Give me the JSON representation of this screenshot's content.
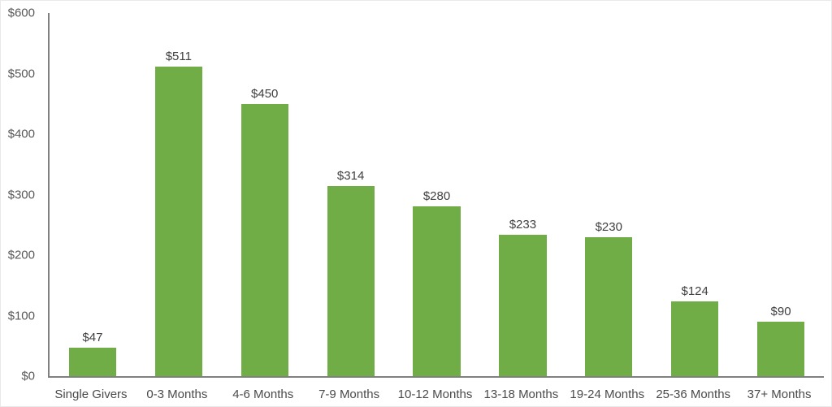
{
  "chart": {
    "background_color": "#ffffff",
    "border_color": "#e9e9e9",
    "bar_color": "#70AD47",
    "axis_line_color": "#808080",
    "tick_label_color": "#595959",
    "value_label_color": "#404040",
    "category_label_color": "#4a4a4a"
  },
  "chart_data": {
    "type": "bar",
    "title": "",
    "xlabel": "",
    "ylabel": "",
    "categories": [
      "Single Givers",
      "0-3 Months",
      "4-6 Months",
      "7-9 Months",
      "10-12 Months",
      "13-18 Months",
      "19-24 Months",
      "25-36 Months",
      "37+ Months"
    ],
    "values": [
      47,
      511,
      450,
      314,
      280,
      233,
      230,
      124,
      90
    ],
    "value_labels": [
      "$47",
      "$511",
      "$450",
      "$314",
      "$280",
      "$233",
      "$230",
      "$124",
      "$90"
    ],
    "ylim": [
      0,
      600
    ],
    "y_ticks": [
      {
        "value": 0,
        "label": "$0"
      },
      {
        "value": 100,
        "label": "$100"
      },
      {
        "value": 200,
        "label": "$200"
      },
      {
        "value": 300,
        "label": "$300"
      },
      {
        "value": 400,
        "label": "$400"
      },
      {
        "value": 500,
        "label": "$500"
      },
      {
        "value": 600,
        "label": "$600"
      }
    ],
    "grid": false,
    "legend": false,
    "layout": {
      "bar_width_fraction": 0.55
    }
  }
}
